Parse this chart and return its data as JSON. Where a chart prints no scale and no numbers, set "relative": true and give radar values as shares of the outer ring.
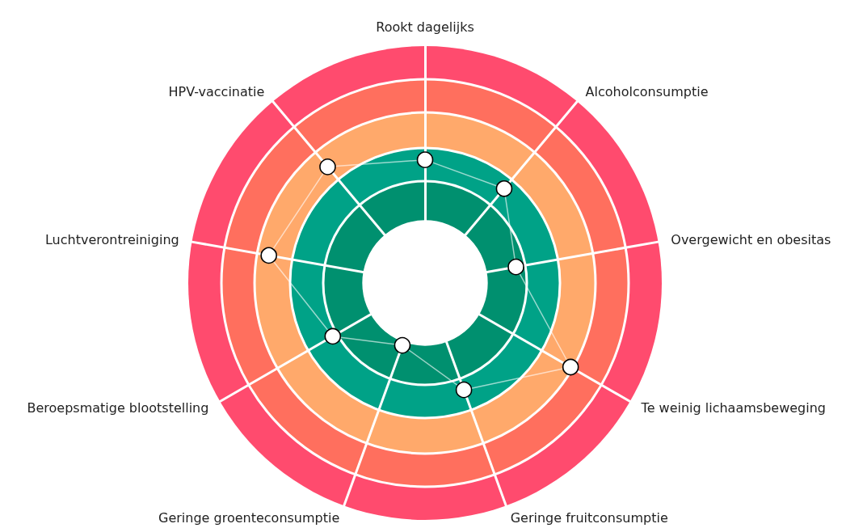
{
  "chart_data": {
    "type": "radar",
    "relative": true,
    "marker": "circle",
    "categories": [
      "Rookt dagelijks",
      "Alcoholconsumptie",
      "Overgewicht en obesitas",
      "Te weinig lichaamsbeweging",
      "Geringe fruitconsumptie",
      "Geringe groenteconsumptie",
      "Beroepsmatige blootstelling",
      "Luchtverontreiniging",
      "HPV-vaccinatie"
    ],
    "series": [
      {
        "color": "#ffffff",
        "values": [
          0.52,
          0.52,
          0.39,
          0.71,
          0.48,
          0.28,
          0.45,
          0.67,
          0.64
        ]
      }
    ]
  }
}
